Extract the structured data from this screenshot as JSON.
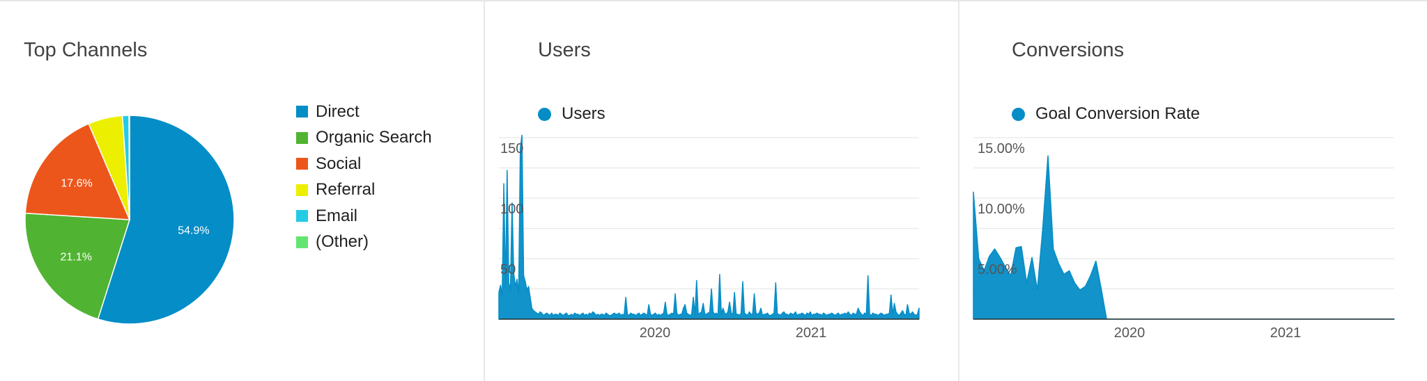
{
  "colors": {
    "direct": "#058dc7",
    "organic_search": "#50b432",
    "social": "#ed561b",
    "referral": "#edef00",
    "email": "#24cbe5",
    "other": "#64e572",
    "series": "#058dc7",
    "grid": "#e8e8e8"
  },
  "channels": {
    "title": "Top Channels"
  },
  "users": {
    "title": "Users"
  },
  "conversions": {
    "title": "Conversions"
  },
  "chart_data": [
    {
      "type": "pie",
      "title": "Top Channels",
      "categories": [
        "Direct",
        "Organic Search",
        "Social",
        "Referral",
        "Email",
        "(Other)"
      ],
      "values": [
        54.9,
        21.1,
        17.6,
        5.3,
        1.0,
        0.1
      ],
      "labels": [
        "54.9%",
        "21.1%",
        "17.6%",
        "",
        "",
        ""
      ],
      "legend": "right"
    },
    {
      "type": "area",
      "title": "Users",
      "series": [
        {
          "name": "Users",
          "values": [
            22,
            28,
            19,
            112,
            26,
            123,
            30,
            24,
            96,
            38,
            27,
            33,
            21,
            141,
            152,
            36,
            31,
            24,
            27,
            18,
            9,
            7,
            6,
            5,
            4,
            6,
            5,
            3,
            4,
            5,
            4,
            3,
            5,
            3,
            4,
            4,
            3,
            5,
            4,
            3,
            4,
            5,
            3,
            3,
            4,
            3,
            5,
            4,
            4,
            3,
            4,
            5,
            3,
            4,
            3,
            5,
            4,
            6,
            5,
            3,
            4,
            3,
            4,
            4,
            3,
            5,
            4,
            3,
            3,
            4,
            5,
            4,
            4,
            5,
            3,
            4,
            3,
            18,
            4,
            3,
            5,
            4,
            4,
            3,
            4,
            5,
            3,
            4,
            5,
            4,
            3,
            12,
            4,
            3,
            4,
            5,
            3,
            4,
            3,
            4,
            5,
            14,
            4,
            3,
            4,
            5,
            4,
            21,
            5,
            3,
            4,
            4,
            9,
            12,
            5,
            4,
            3,
            4,
            18,
            4,
            32,
            4,
            5,
            6,
            13,
            4,
            4,
            5,
            6,
            25,
            6,
            4,
            5,
            3,
            37,
            4,
            9,
            5,
            4,
            6,
            14,
            5,
            4,
            22,
            4,
            4,
            3,
            5,
            31,
            5,
            4,
            3,
            6,
            4,
            4,
            21,
            5,
            4,
            5,
            9,
            3,
            4,
            4,
            5,
            3,
            3,
            4,
            5,
            30,
            4,
            4,
            3,
            5,
            6,
            4,
            4,
            3,
            5,
            4,
            4,
            6,
            3,
            4,
            4,
            5,
            4,
            3,
            5,
            4,
            6,
            3,
            4,
            4,
            5,
            4,
            4,
            3,
            5,
            4,
            3,
            4,
            4,
            5,
            4,
            3,
            4,
            5,
            3,
            4,
            4,
            5,
            4,
            6,
            4,
            3,
            5,
            4,
            4,
            9,
            6,
            4,
            3,
            5,
            4,
            36,
            4,
            3,
            5,
            4,
            4,
            3,
            4,
            5,
            4,
            3,
            4,
            4,
            5,
            20,
            4,
            13,
            6,
            4,
            3,
            5,
            7,
            4,
            3,
            12,
            5,
            4,
            6,
            4,
            3,
            4,
            9
          ],
          "x_start": "2019-01",
          "x_end": "2021-09"
        }
      ],
      "x_tick_labels": [
        "2020",
        "2021"
      ],
      "y_tick_labels": [
        "150",
        "100",
        "50"
      ],
      "ylim": [
        0,
        150
      ],
      "grid": true,
      "legend": "top-left"
    },
    {
      "type": "area",
      "title": "Conversions",
      "series": [
        {
          "name": "Goal Conversion Rate",
          "values": [
            10.5,
            5.0,
            4.0,
            5.2,
            5.8,
            5.1,
            4.3,
            3.6,
            5.9,
            6.0,
            3.0,
            5.1,
            2.4,
            7.4,
            13.5,
            5.8,
            4.6,
            3.7,
            4.0,
            3.0,
            2.4,
            2.7,
            3.6,
            4.8,
            2.5,
            0,
            0,
            0,
            0,
            0,
            0,
            0,
            0,
            0,
            0,
            0,
            0,
            0,
            0,
            0,
            0,
            0,
            0,
            0,
            0,
            0,
            0,
            0,
            0,
            0,
            0,
            0,
            0,
            0,
            0,
            0,
            0,
            0,
            0,
            0,
            0,
            0,
            0,
            0,
            0,
            0,
            0,
            0,
            0,
            0,
            0,
            0,
            0,
            0,
            0,
            0,
            0,
            0,
            0,
            0
          ],
          "x_start": "2019-01",
          "x_end": "2021-09"
        }
      ],
      "x_tick_labels": [
        "2020",
        "2021"
      ],
      "y_tick_labels": [
        "15.00%",
        "10.00%",
        "5.00%"
      ],
      "ylim": [
        0,
        15
      ],
      "grid": true,
      "legend": "top-left"
    }
  ]
}
